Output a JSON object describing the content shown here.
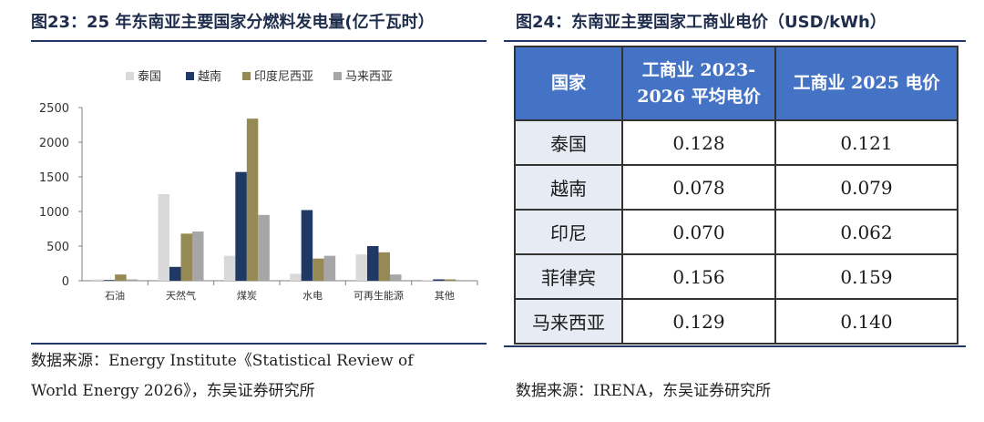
{
  "left_title": "图23：25 年东南亚主要国家分燃料发电量(亿千瓦时）",
  "right_title": "图24：东南亚主要国家工商业电价（USD/kWh）",
  "chart_data": {
    "type": "bar",
    "categories": [
      "石油",
      "天然气",
      "煤炭",
      "水电",
      "可再生能源",
      "其他"
    ],
    "series": [
      {
        "name": "泰国",
        "color": "#d9d9d9",
        "values": [
          20,
          1250,
          360,
          100,
          380,
          10
        ]
      },
      {
        "name": "越南",
        "color": "#1f3864",
        "values": [
          10,
          200,
          1570,
          1020,
          500,
          20
        ]
      },
      {
        "name": "印度尼西亚",
        "color": "#958a54",
        "values": [
          90,
          680,
          2340,
          320,
          410,
          20
        ]
      },
      {
        "name": "马来西亚",
        "color": "#a6a6a6",
        "values": [
          20,
          710,
          950,
          360,
          90,
          10
        ]
      }
    ],
    "yticks": [
      0,
      500,
      1000,
      1500,
      2000,
      2500
    ],
    "ylim": [
      0,
      2500
    ],
    "legend_position": "top",
    "grid": false
  },
  "table": {
    "headers": [
      "国家",
      "工商业 2023-2026 平均电价",
      "工商业 2025 电价"
    ],
    "rows": [
      [
        "泰国",
        "0.128",
        "0.121"
      ],
      [
        "越南",
        "0.078",
        "0.079"
      ],
      [
        "印尼",
        "0.070",
        "0.062"
      ],
      [
        "菲律宾",
        "0.156",
        "0.159"
      ],
      [
        "马来西亚",
        "0.129",
        "0.140"
      ]
    ]
  },
  "left_source": "数据来源：Energy Institute《Statistical Review of World Energy 2026》，东吴证券研究所",
  "right_source": "数据来源：IRENA，东吴证券研究所"
}
